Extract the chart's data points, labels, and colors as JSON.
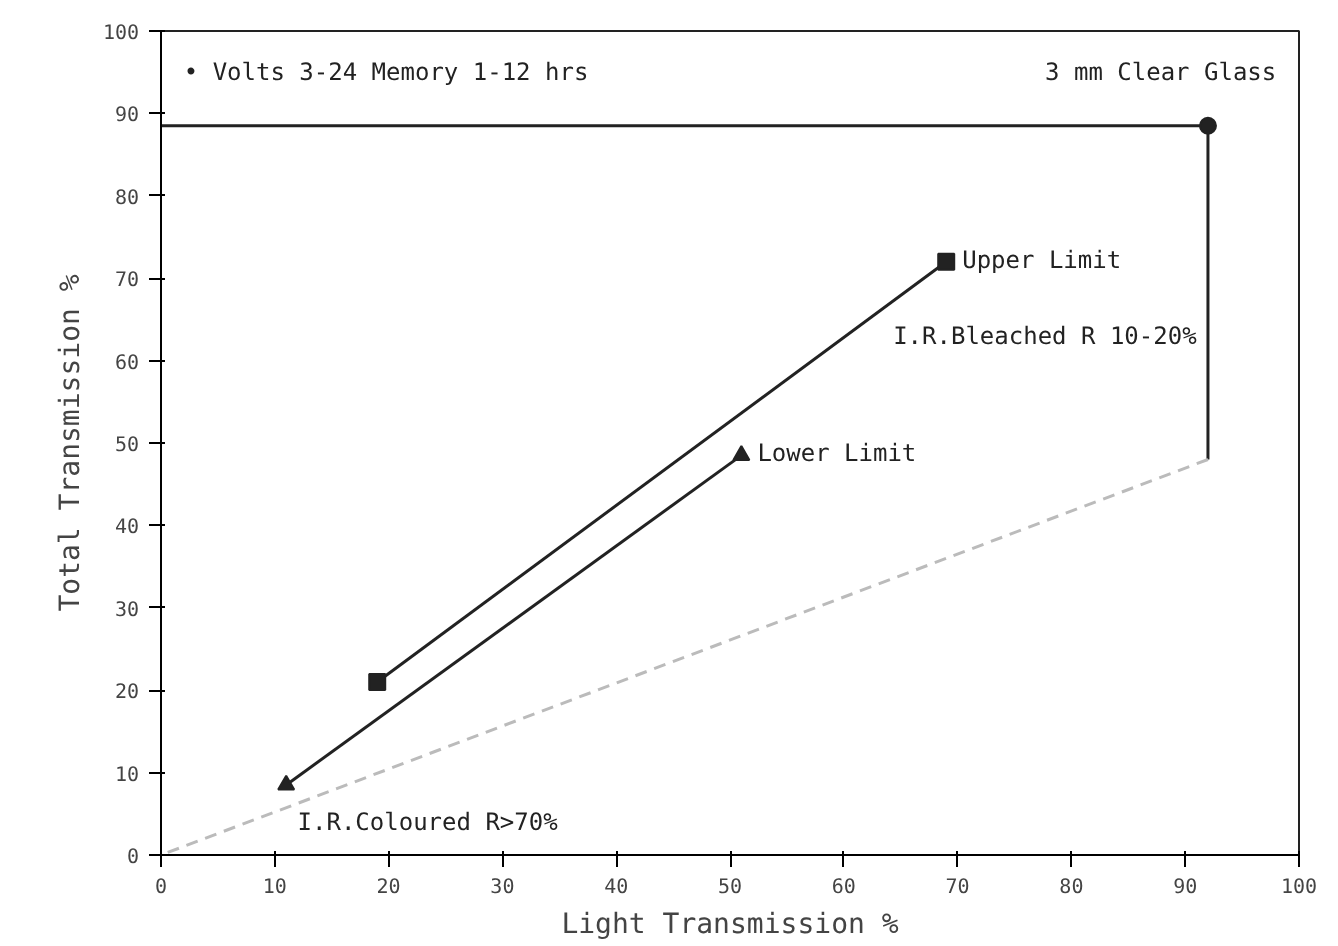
{
  "chart_data": {
    "type": "line",
    "xlabel": "Light Transmission %",
    "ylabel": "Total Transmission %",
    "xlim": [
      0,
      100
    ],
    "ylim": [
      0,
      100
    ],
    "xticks": [
      0,
      10,
      20,
      30,
      40,
      50,
      60,
      70,
      80,
      90,
      100
    ],
    "yticks": [
      0,
      10,
      20,
      30,
      40,
      50,
      60,
      70,
      80,
      90,
      100
    ],
    "grid": false,
    "series": [
      {
        "name": "Upper Limit",
        "color": "#222222",
        "x": [
          19,
          69
        ],
        "values": [
          21,
          72
        ],
        "marker": "square",
        "line_style": "solid"
      },
      {
        "name": "Lower Limit",
        "color": "#222222",
        "x": [
          11,
          51
        ],
        "values": [
          8.5,
          48.5
        ],
        "marker": "triangle",
        "line_style": "solid"
      },
      {
        "color": "#222222",
        "x": [
          0,
          92,
          92
        ],
        "values": [
          88.5,
          88.5,
          48
        ],
        "marker": "none",
        "line_style": "solid"
      },
      {
        "color": "#bbbbbb",
        "x": [
          92,
          0
        ],
        "values": [
          48,
          0
        ],
        "marker": "none",
        "line_style": "dashed"
      },
      {
        "type": "scatter",
        "color": "#222222",
        "x": [
          92
        ],
        "values": [
          88.5
        ]
      }
    ],
    "annotations": [
      "• Volts 3-24 Memory 1-12 hrs",
      "3 mm Clear Glass",
      "I.R.Bleached R 10-20%",
      "I.R.Coloured R>70%"
    ]
  }
}
